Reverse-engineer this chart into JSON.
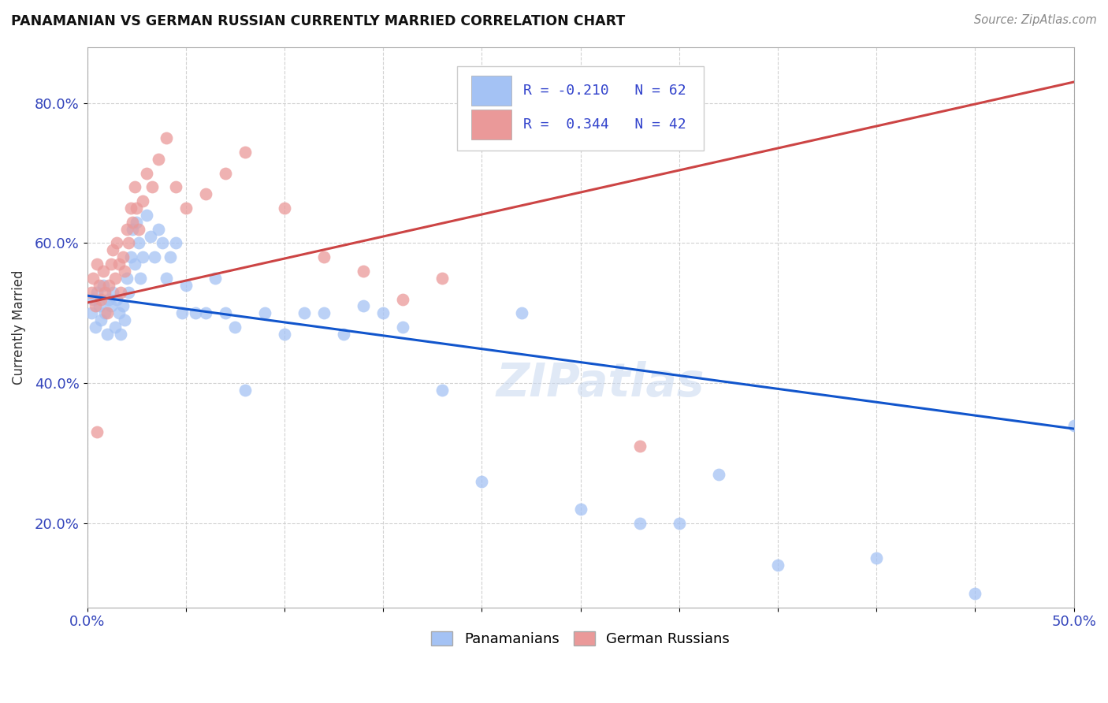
{
  "title": "PANAMANIAN VS GERMAN RUSSIAN CURRENTLY MARRIED CORRELATION CHART",
  "source_text": "Source: ZipAtlas.com",
  "ylabel": "Currently Married",
  "legend_blue_r": "-0.210",
  "legend_blue_n": "62",
  "legend_pink_r": "0.344",
  "legend_pink_n": "42",
  "watermark": "ZIPatlas",
  "blue_color": "#a4c2f4",
  "pink_color": "#ea9999",
  "blue_line_color": "#1155cc",
  "pink_line_color": "#cc4444",
  "background_color": "#ffffff",
  "xlim": [
    0.0,
    0.5
  ],
  "ylim": [
    0.08,
    0.88
  ],
  "blue_scatter_x": [
    0.002,
    0.003,
    0.004,
    0.005,
    0.006,
    0.007,
    0.008,
    0.009,
    0.01,
    0.011,
    0.012,
    0.013,
    0.014,
    0.015,
    0.016,
    0.017,
    0.018,
    0.019,
    0.02,
    0.021,
    0.022,
    0.023,
    0.024,
    0.025,
    0.026,
    0.027,
    0.028,
    0.03,
    0.032,
    0.034,
    0.036,
    0.038,
    0.04,
    0.042,
    0.045,
    0.048,
    0.05,
    0.055,
    0.06,
    0.065,
    0.07,
    0.075,
    0.08,
    0.09,
    0.1,
    0.11,
    0.12,
    0.13,
    0.14,
    0.15,
    0.16,
    0.18,
    0.2,
    0.22,
    0.25,
    0.28,
    0.3,
    0.32,
    0.35,
    0.4,
    0.45,
    0.5
  ],
  "blue_scatter_y": [
    0.5,
    0.52,
    0.48,
    0.53,
    0.51,
    0.49,
    0.54,
    0.5,
    0.47,
    0.52,
    0.51,
    0.53,
    0.48,
    0.52,
    0.5,
    0.47,
    0.51,
    0.49,
    0.55,
    0.53,
    0.58,
    0.62,
    0.57,
    0.63,
    0.6,
    0.55,
    0.58,
    0.64,
    0.61,
    0.58,
    0.62,
    0.6,
    0.55,
    0.58,
    0.6,
    0.5,
    0.54,
    0.5,
    0.5,
    0.55,
    0.5,
    0.48,
    0.39,
    0.5,
    0.47,
    0.5,
    0.5,
    0.47,
    0.51,
    0.5,
    0.48,
    0.39,
    0.26,
    0.5,
    0.22,
    0.2,
    0.2,
    0.27,
    0.14,
    0.15,
    0.1,
    0.34
  ],
  "pink_scatter_x": [
    0.002,
    0.003,
    0.004,
    0.005,
    0.006,
    0.007,
    0.008,
    0.009,
    0.01,
    0.011,
    0.012,
    0.013,
    0.014,
    0.015,
    0.016,
    0.017,
    0.018,
    0.019,
    0.02,
    0.021,
    0.022,
    0.023,
    0.024,
    0.025,
    0.026,
    0.028,
    0.03,
    0.033,
    0.036,
    0.04,
    0.045,
    0.05,
    0.06,
    0.07,
    0.08,
    0.1,
    0.12,
    0.14,
    0.16,
    0.18,
    0.28,
    0.005
  ],
  "pink_scatter_y": [
    0.53,
    0.55,
    0.51,
    0.57,
    0.54,
    0.52,
    0.56,
    0.53,
    0.5,
    0.54,
    0.57,
    0.59,
    0.55,
    0.6,
    0.57,
    0.53,
    0.58,
    0.56,
    0.62,
    0.6,
    0.65,
    0.63,
    0.68,
    0.65,
    0.62,
    0.66,
    0.7,
    0.68,
    0.72,
    0.75,
    0.68,
    0.65,
    0.67,
    0.7,
    0.73,
    0.65,
    0.58,
    0.56,
    0.52,
    0.55,
    0.31,
    0.33
  ],
  "blue_line_x": [
    0.0,
    0.5
  ],
  "blue_line_y": [
    0.525,
    0.335
  ],
  "pink_line_x": [
    0.0,
    0.5
  ],
  "pink_line_y": [
    0.515,
    0.83
  ]
}
